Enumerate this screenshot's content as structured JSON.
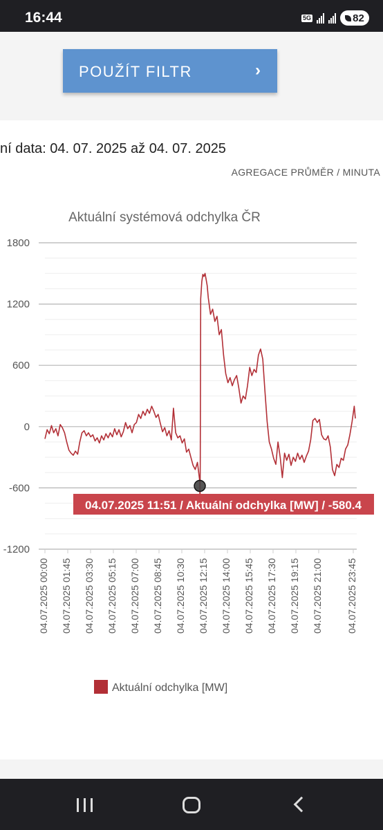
{
  "status": {
    "time": "16:44",
    "network": "5G",
    "battery": "82"
  },
  "filter": {
    "button_label": "POUŽÍT FILTR",
    "chevron": "›"
  },
  "date_range": "ní data: 04. 07. 2025 až 04. 07. 2025",
  "aggregation": "AGREGACE PRŮMĚR / MINUTA",
  "colors": {
    "series": "#b22f36",
    "button": "#5e93cf",
    "tooltip": "#c9454c"
  },
  "chart_data": {
    "type": "line",
    "title": "Aktuální systémová odchylka ČR",
    "xlabel": "",
    "ylabel": "",
    "ylim": [
      -1200,
      1800
    ],
    "y_ticks": [
      1800,
      1200,
      600,
      0,
      -600,
      -1200
    ],
    "grid": true,
    "x_ticks": [
      "04.07.2025 00:00",
      "04.07.2025 01:45",
      "04.07.2025 03:30",
      "04.07.2025 05:15",
      "04.07.2025 07:00",
      "04.07.2025 08:45",
      "04.07.2025 10:30",
      "04.07.2025 12:15",
      "04.07.2025 14:00",
      "04.07.2025 15:45",
      "04.07.2025 17:30",
      "04.07.2025 19:15",
      "04.07.2025 21:00",
      "04.07.2025 23:45"
    ],
    "legend": {
      "position": "bottom-left",
      "label": "Aktuální odchylka [MW]"
    },
    "series": [
      {
        "name": "Aktuální odchylka [MW]",
        "points": [
          [
            "00:00",
            -120
          ],
          [
            "00:10",
            -30
          ],
          [
            "00:20",
            -70
          ],
          [
            "00:30",
            10
          ],
          [
            "00:40",
            -60
          ],
          [
            "00:50",
            -20
          ],
          [
            "01:00",
            -90
          ],
          [
            "01:10",
            20
          ],
          [
            "01:20",
            -10
          ],
          [
            "01:30",
            -60
          ],
          [
            "01:40",
            -150
          ],
          [
            "01:50",
            -230
          ],
          [
            "02:00",
            -260
          ],
          [
            "02:10",
            -280
          ],
          [
            "02:20",
            -240
          ],
          [
            "02:30",
            -270
          ],
          [
            "02:40",
            -150
          ],
          [
            "02:50",
            -60
          ],
          [
            "03:00",
            -40
          ],
          [
            "03:10",
            -90
          ],
          [
            "03:20",
            -60
          ],
          [
            "03:30",
            -100
          ],
          [
            "03:40",
            -80
          ],
          [
            "03:50",
            -140
          ],
          [
            "04:00",
            -110
          ],
          [
            "04:10",
            -160
          ],
          [
            "04:20",
            -90
          ],
          [
            "04:30",
            -130
          ],
          [
            "04:40",
            -70
          ],
          [
            "04:50",
            -110
          ],
          [
            "05:00",
            -60
          ],
          [
            "05:10",
            -100
          ],
          [
            "05:20",
            -20
          ],
          [
            "05:30",
            -80
          ],
          [
            "05:40",
            -30
          ],
          [
            "05:50",
            -100
          ],
          [
            "06:00",
            -50
          ],
          [
            "06:10",
            40
          ],
          [
            "06:20",
            -20
          ],
          [
            "06:30",
            10
          ],
          [
            "06:40",
            -60
          ],
          [
            "06:50",
            20
          ],
          [
            "07:00",
            40
          ],
          [
            "07:10",
            120
          ],
          [
            "07:20",
            80
          ],
          [
            "07:30",
            150
          ],
          [
            "07:40",
            110
          ],
          [
            "07:50",
            170
          ],
          [
            "08:00",
            130
          ],
          [
            "08:10",
            200
          ],
          [
            "08:20",
            150
          ],
          [
            "08:30",
            90
          ],
          [
            "08:40",
            120
          ],
          [
            "08:50",
            30
          ],
          [
            "09:00",
            -50
          ],
          [
            "09:10",
            -10
          ],
          [
            "09:20",
            -90
          ],
          [
            "09:30",
            -40
          ],
          [
            "09:40",
            -130
          ],
          [
            "09:50",
            180
          ],
          [
            "10:00",
            -60
          ],
          [
            "10:10",
            -110
          ],
          [
            "10:20",
            -90
          ],
          [
            "10:30",
            -160
          ],
          [
            "10:40",
            -120
          ],
          [
            "10:50",
            -250
          ],
          [
            "11:00",
            -220
          ],
          [
            "11:10",
            -300
          ],
          [
            "11:20",
            -380
          ],
          [
            "11:30",
            -420
          ],
          [
            "11:40",
            -350
          ],
          [
            "11:50",
            -520
          ],
          [
            "11:51",
            -580
          ],
          [
            "11:52",
            -820
          ],
          [
            "11:53",
            -300
          ],
          [
            "11:55",
            1250
          ],
          [
            "12:00",
            1420
          ],
          [
            "12:05",
            1490
          ],
          [
            "12:10",
            1470
          ],
          [
            "12:15",
            1500
          ],
          [
            "12:20",
            1440
          ],
          [
            "12:25",
            1380
          ],
          [
            "12:30",
            1260
          ],
          [
            "12:40",
            1100
          ],
          [
            "12:50",
            1150
          ],
          [
            "13:00",
            1030
          ],
          [
            "13:10",
            1080
          ],
          [
            "13:20",
            900
          ],
          [
            "13:30",
            950
          ],
          [
            "13:40",
            700
          ],
          [
            "13:50",
            520
          ],
          [
            "14:00",
            430
          ],
          [
            "14:10",
            480
          ],
          [
            "14:20",
            400
          ],
          [
            "14:30",
            460
          ],
          [
            "14:40",
            500
          ],
          [
            "14:50",
            380
          ],
          [
            "15:00",
            230
          ],
          [
            "15:10",
            300
          ],
          [
            "15:20",
            270
          ],
          [
            "15:30",
            400
          ],
          [
            "15:40",
            580
          ],
          [
            "15:50",
            500
          ],
          [
            "16:00",
            560
          ],
          [
            "16:10",
            530
          ],
          [
            "16:20",
            700
          ],
          [
            "16:30",
            760
          ],
          [
            "16:40",
            660
          ],
          [
            "16:50",
            350
          ],
          [
            "17:00",
            50
          ],
          [
            "17:10",
            -150
          ],
          [
            "17:20",
            -220
          ],
          [
            "17:30",
            -310
          ],
          [
            "17:40",
            -370
          ],
          [
            "17:50",
            -150
          ],
          [
            "18:00",
            -300
          ],
          [
            "18:10",
            -500
          ],
          [
            "18:20",
            -260
          ],
          [
            "18:30",
            -330
          ],
          [
            "18:40",
            -270
          ],
          [
            "18:50",
            -380
          ],
          [
            "19:00",
            -300
          ],
          [
            "19:10",
            -340
          ],
          [
            "19:20",
            -260
          ],
          [
            "19:30",
            -320
          ],
          [
            "19:40",
            -280
          ],
          [
            "19:50",
            -350
          ],
          [
            "20:00",
            -290
          ],
          [
            "20:10",
            -240
          ],
          [
            "20:20",
            -130
          ],
          [
            "20:30",
            60
          ],
          [
            "20:40",
            80
          ],
          [
            "20:50",
            40
          ],
          [
            "21:00",
            70
          ],
          [
            "21:10",
            -80
          ],
          [
            "21:20",
            -120
          ],
          [
            "21:30",
            -130
          ],
          [
            "21:40",
            -90
          ],
          [
            "21:50",
            -200
          ],
          [
            "22:00",
            -420
          ],
          [
            "22:10",
            -480
          ],
          [
            "22:20",
            -370
          ],
          [
            "22:30",
            -400
          ],
          [
            "22:40",
            -310
          ],
          [
            "22:50",
            -330
          ],
          [
            "23:00",
            -220
          ],
          [
            "23:10",
            -180
          ],
          [
            "23:20",
            -80
          ],
          [
            "23:30",
            50
          ],
          [
            "23:40",
            200
          ],
          [
            "23:45",
            80
          ]
        ]
      }
    ],
    "tooltip": {
      "time": "11:51",
      "value": -580.4,
      "text": "04.07.2025 11:51 / Aktuální odchylka [MW] / -580.4"
    }
  },
  "nav": {
    "recents": "recents-icon",
    "home": "home-icon",
    "back": "back-icon"
  }
}
